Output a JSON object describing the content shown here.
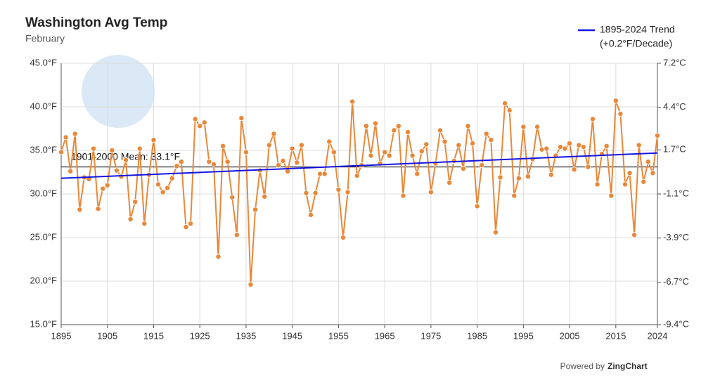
{
  "chart_data": {
    "type": "line",
    "title": "Washington Avg Temp",
    "subtitle": "February",
    "credit_prefix": "Powered by",
    "credit_brand": "ZingChart",
    "color": "#e8883a",
    "x": [
      1895,
      1896,
      1897,
      1898,
      1899,
      1900,
      1901,
      1902,
      1903,
      1904,
      1905,
      1906,
      1907,
      1908,
      1909,
      1910,
      1911,
      1912,
      1913,
      1914,
      1915,
      1916,
      1917,
      1918,
      1919,
      1920,
      1921,
      1922,
      1923,
      1924,
      1925,
      1926,
      1927,
      1928,
      1929,
      1930,
      1931,
      1932,
      1933,
      1934,
      1935,
      1936,
      1937,
      1938,
      1939,
      1940,
      1941,
      1942,
      1943,
      1944,
      1945,
      1946,
      1947,
      1948,
      1949,
      1950,
      1951,
      1952,
      1953,
      1954,
      1955,
      1956,
      1957,
      1958,
      1959,
      1960,
      1961,
      1962,
      1963,
      1964,
      1965,
      1966,
      1967,
      1968,
      1969,
      1970,
      1971,
      1972,
      1973,
      1974,
      1975,
      1976,
      1977,
      1978,
      1979,
      1980,
      1981,
      1982,
      1983,
      1984,
      1985,
      1986,
      1987,
      1988,
      1989,
      1990,
      1991,
      1992,
      1993,
      1994,
      1995,
      1996,
      1997,
      1998,
      1999,
      2000,
      2001,
      2002,
      2003,
      2004,
      2005,
      2006,
      2007,
      2008,
      2009,
      2010,
      2011,
      2012,
      2013,
      2014,
      2015,
      2016,
      2017,
      2018,
      2019,
      2020,
      2021,
      2022,
      2023,
      2024
    ],
    "values": [
      34.8,
      36.5,
      32.6,
      36.9,
      28.2,
      31.9,
      31.7,
      35.2,
      28.3,
      30.6,
      31.0,
      35.0,
      32.7,
      32.0,
      33.9,
      27.1,
      29.1,
      35.2,
      26.6,
      32.2,
      36.2,
      31.1,
      30.2,
      30.7,
      31.8,
      33.2,
      33.7,
      26.2,
      26.6,
      38.6,
      37.8,
      38.2,
      33.7,
      33.4,
      22.8,
      35.5,
      33.7,
      29.6,
      25.3,
      38.7,
      34.8,
      19.6,
      28.2,
      32.7,
      29.7,
      35.6,
      36.9,
      33.3,
      33.8,
      32.6,
      35.2,
      33.6,
      35.6,
      30.1,
      27.6,
      30.1,
      32.3,
      32.3,
      36.0,
      34.8,
      30.5,
      25.0,
      30.2,
      40.6,
      32.1,
      33.3,
      37.8,
      34.4,
      38.1,
      33.5,
      34.8,
      34.4,
      37.3,
      37.8,
      29.8,
      37.1,
      34.4,
      32.3,
      34.9,
      35.7,
      30.2,
      33.5,
      37.3,
      36.0,
      31.3,
      33.8,
      35.6,
      32.9,
      37.8,
      35.8,
      28.6,
      33.3,
      36.9,
      36.2,
      25.6,
      31.9,
      40.4,
      39.6,
      29.8,
      31.8,
      37.7,
      32.0,
      34.0,
      37.7,
      35.1,
      35.2,
      32.2,
      34.4,
      35.4,
      35.2,
      35.8,
      32.8,
      35.6,
      35.4,
      33.1,
      38.6,
      31.1,
      34.6,
      35.5,
      29.8,
      40.7,
      39.2,
      31.1,
      32.4,
      25.3,
      35.6,
      31.4,
      33.7,
      32.4,
      36.7
    ],
    "trend": {
      "name": "1895-2024 Trend",
      "note": "(+0.2°F/Decade)",
      "color": "#1414e6",
      "x": [
        1895,
        2024
      ],
      "values": [
        31.8,
        34.7
      ]
    },
    "mean": {
      "label": "1901-2000 Mean: 33.1°F",
      "value": 33.1,
      "color": "#111"
    },
    "xlim": [
      1895,
      2024
    ],
    "xticks": [
      1895,
      1905,
      1915,
      1925,
      1935,
      1945,
      1955,
      1965,
      1975,
      1985,
      1995,
      2005,
      2015,
      2024
    ],
    "ylim": [
      15,
      45
    ],
    "yticks": [
      {
        "value": 45,
        "label": "45.0°F"
      },
      {
        "value": 40,
        "label": "40.0°F"
      },
      {
        "value": 35,
        "label": "35.0°F"
      },
      {
        "value": 30,
        "label": "30.0°F"
      },
      {
        "value": 25,
        "label": "25.0°F"
      },
      {
        "value": 20,
        "label": "20.0°F"
      },
      {
        "value": 15,
        "label": "15.0°F"
      }
    ],
    "y2lim": [
      -9.4,
      7.2
    ],
    "y2ticks": [
      {
        "value": 7.2,
        "label": "7.2°C"
      },
      {
        "value": 4.4,
        "label": "4.4°C"
      },
      {
        "value": 1.7,
        "label": "1.7°C"
      },
      {
        "value": -1.1,
        "label": "-1.1°C"
      },
      {
        "value": -3.9,
        "label": "-3.9°C"
      },
      {
        "value": -6.7,
        "label": "-6.7°C"
      },
      {
        "value": -9.4,
        "label": "-9.4°C"
      }
    ],
    "grid": true
  }
}
